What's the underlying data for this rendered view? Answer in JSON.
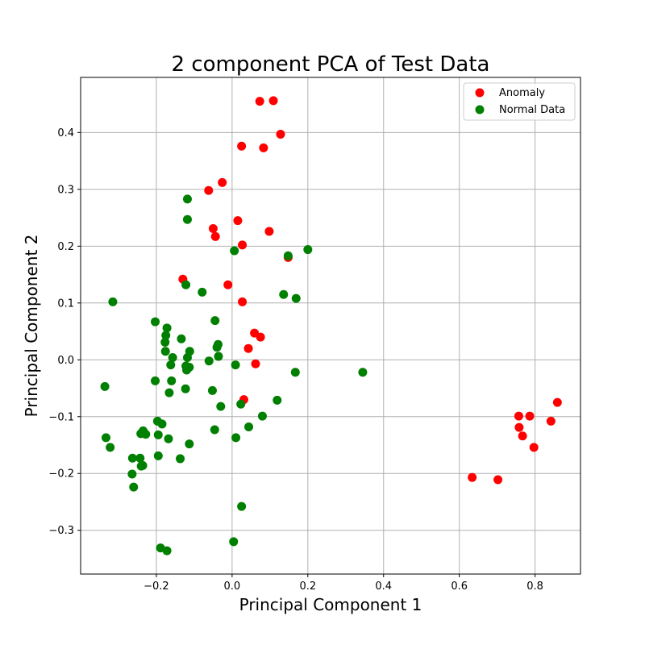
{
  "chart_data": {
    "type": "scatter",
    "title": "2 component PCA of Test Data",
    "xlabel": "Principal Component 1",
    "ylabel": "Principal Component 2",
    "xlim": [
      -0.4,
      0.92
    ],
    "ylim": [
      -0.377,
      0.497
    ],
    "xticks": [
      -0.2,
      0.0,
      0.2,
      0.4,
      0.6,
      0.8
    ],
    "xtick_labels": [
      "−0.2",
      "0.0",
      "0.2",
      "0.4",
      "0.6",
      "0.8"
    ],
    "yticks": [
      -0.3,
      -0.2,
      -0.1,
      0.0,
      0.1,
      0.2,
      0.3,
      0.4
    ],
    "ytick_labels": [
      "−0.3",
      "−0.2",
      "−0.1",
      "0.0",
      "0.1",
      "0.2",
      "0.3",
      "0.4"
    ],
    "grid": true,
    "legend_position": "top-right",
    "series": [
      {
        "name": "Anomaly",
        "color": "#ff0000",
        "points": [
          [
            0.073,
            0.455
          ],
          [
            0.109,
            0.456
          ],
          [
            0.128,
            0.397
          ],
          [
            0.025,
            0.376
          ],
          [
            0.083,
            0.373
          ],
          [
            -0.026,
            0.312
          ],
          [
            -0.062,
            0.298
          ],
          [
            -0.05,
            0.231
          ],
          [
            0.015,
            0.245
          ],
          [
            -0.044,
            0.217
          ],
          [
            0.098,
            0.226
          ],
          [
            0.027,
            0.202
          ],
          [
            0.148,
            0.18
          ],
          [
            -0.13,
            0.142
          ],
          [
            -0.011,
            0.132
          ],
          [
            0.027,
            0.102
          ],
          [
            0.059,
            0.047
          ],
          [
            0.075,
            0.04
          ],
          [
            0.043,
            0.02
          ],
          [
            0.062,
            -0.007
          ],
          [
            0.031,
            -0.07
          ],
          [
            0.859,
            -0.075
          ],
          [
            0.842,
            -0.108
          ],
          [
            0.757,
            -0.099
          ],
          [
            0.786,
            -0.099
          ],
          [
            0.758,
            -0.119
          ],
          [
            0.767,
            -0.134
          ],
          [
            0.797,
            -0.154
          ],
          [
            0.634,
            -0.207
          ],
          [
            0.702,
            -0.211
          ]
        ]
      },
      {
        "name": "Normal Data",
        "color": "#008000",
        "points": [
          [
            -0.118,
            0.283
          ],
          [
            -0.118,
            0.247
          ],
          [
            0.2,
            0.194
          ],
          [
            0.006,
            0.192
          ],
          [
            0.148,
            0.183
          ],
          [
            -0.122,
            0.132
          ],
          [
            -0.079,
            0.119
          ],
          [
            0.136,
            0.115
          ],
          [
            0.169,
            0.108
          ],
          [
            -0.315,
            0.102
          ],
          [
            -0.203,
            0.067
          ],
          [
            -0.045,
            0.069
          ],
          [
            -0.172,
            0.056
          ],
          [
            -0.175,
            0.043
          ],
          [
            -0.134,
            0.037
          ],
          [
            -0.177,
            0.031
          ],
          [
            -0.037,
            0.027
          ],
          [
            -0.04,
            0.022
          ],
          [
            -0.176,
            0.015
          ],
          [
            -0.112,
            0.015
          ],
          [
            -0.157,
            0.004
          ],
          [
            -0.118,
            0.004
          ],
          [
            -0.036,
            0.006
          ],
          [
            -0.061,
            -0.002
          ],
          [
            -0.162,
            -0.009
          ],
          [
            0.009,
            -0.009
          ],
          [
            -0.113,
            -0.013
          ],
          [
            -0.122,
            -0.011
          ],
          [
            -0.12,
            -0.018
          ],
          [
            0.345,
            -0.022
          ],
          [
            0.167,
            -0.022
          ],
          [
            -0.16,
            -0.037
          ],
          [
            -0.203,
            -0.037
          ],
          [
            -0.336,
            -0.047
          ],
          [
            -0.123,
            -0.051
          ],
          [
            -0.052,
            -0.054
          ],
          [
            -0.166,
            -0.058
          ],
          [
            0.119,
            -0.071
          ],
          [
            0.023,
            -0.078
          ],
          [
            -0.03,
            -0.082
          ],
          [
            0.08,
            -0.099
          ],
          [
            -0.197,
            -0.108
          ],
          [
            -0.185,
            -0.113
          ],
          [
            0.044,
            -0.118
          ],
          [
            -0.046,
            -0.123
          ],
          [
            -0.235,
            -0.125
          ],
          [
            -0.228,
            -0.131
          ],
          [
            -0.241,
            -0.13
          ],
          [
            -0.195,
            -0.132
          ],
          [
            -0.168,
            -0.139
          ],
          [
            0.01,
            -0.137
          ],
          [
            -0.333,
            -0.137
          ],
          [
            -0.322,
            -0.154
          ],
          [
            -0.113,
            -0.148
          ],
          [
            -0.195,
            -0.169
          ],
          [
            -0.263,
            -0.173
          ],
          [
            -0.243,
            -0.173
          ],
          [
            -0.137,
            -0.174
          ],
          [
            -0.24,
            -0.187
          ],
          [
            -0.236,
            -0.186
          ],
          [
            -0.264,
            -0.201
          ],
          [
            -0.26,
            -0.224
          ],
          [
            0.025,
            -0.258
          ],
          [
            0.004,
            -0.32
          ],
          [
            -0.189,
            -0.331
          ],
          [
            -0.172,
            -0.336
          ]
        ]
      }
    ]
  }
}
